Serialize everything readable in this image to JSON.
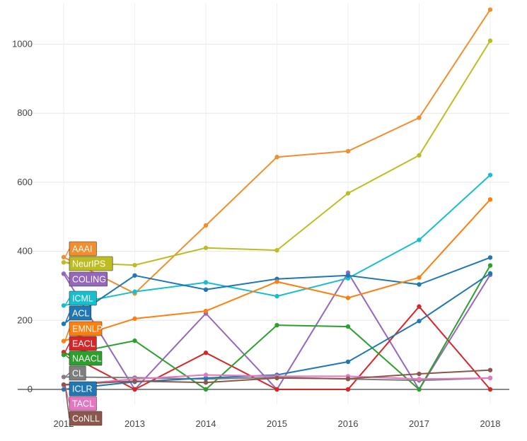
{
  "chart_data": {
    "type": "line",
    "title": "",
    "xlabel": "",
    "ylabel": "",
    "x": [
      2012,
      2013,
      2014,
      2015,
      2016,
      2017,
      2018
    ],
    "x_tick_labels": [
      "2012",
      "2013",
      "2014",
      "2015",
      "2016",
      "2017",
      "2018"
    ],
    "y_tick_labels": [
      "0",
      "200",
      "400",
      "600",
      "800",
      "1000"
    ],
    "y_ticks": [
      0,
      200,
      400,
      600,
      800,
      1000
    ],
    "ylim": [
      -30,
      1100
    ],
    "grid": true,
    "legend_placement": "left, labels at series start",
    "series": [
      {
        "name": "AAAI",
        "color": "#f28e2b",
        "values": [
          383,
          278,
          475,
          673,
          690,
          787,
          1100
        ]
      },
      {
        "name": "NeurIPS",
        "color": "#bcbd22",
        "values": [
          368,
          360,
          410,
          403,
          568,
          678,
          1010
        ]
      },
      {
        "name": "COLING",
        "color": "#9467bd",
        "values": [
          335,
          0,
          220,
          0,
          338,
          0,
          332
        ]
      },
      {
        "name": "ICML",
        "color": "#17becf",
        "values": [
          243,
          283,
          310,
          270,
          322,
          433,
          621
        ]
      },
      {
        "name": "ACL",
        "color": "#1f77b4",
        "values": [
          190,
          330,
          289,
          320,
          330,
          304,
          382
        ]
      },
      {
        "name": "EMNLP",
        "color": "#ff7f0e",
        "values": [
          140,
          205,
          227,
          312,
          265,
          324,
          550
        ]
      },
      {
        "name": "EACL",
        "color": "#d62728",
        "values": [
          108,
          0,
          106,
          0,
          0,
          240,
          0
        ]
      },
      {
        "name": "NAACL",
        "color": "#2ca02c",
        "values": [
          100,
          141,
          0,
          186,
          182,
          0,
          359
        ]
      },
      {
        "name": "CL",
        "color": "#7f7f7f",
        "values": [
          36,
          34,
          30,
          35,
          30,
          26,
          33
        ]
      },
      {
        "name": "ICLR",
        "color": "#1f77b4",
        "values": [
          0,
          22,
          33,
          42,
          80,
          198,
          336
        ]
      },
      {
        "name": "TACL",
        "color": "#e377c2",
        "values": [
          12,
          30,
          42,
          38,
          38,
          30,
          33
        ]
      },
      {
        "name": "CoNLL",
        "color": "#8c564b",
        "values": [
          14,
          24,
          20,
          33,
          31,
          45,
          56
        ]
      }
    ]
  }
}
